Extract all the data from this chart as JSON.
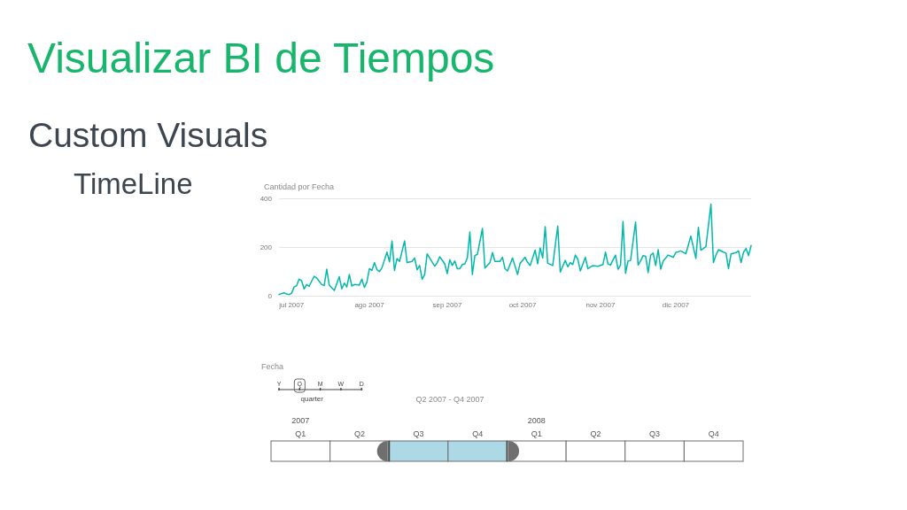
{
  "chart_data": [
    {
      "type": "other",
      "title": "Visualizar BI de Tiempos",
      "subtitle": "Custom Visuals",
      "annotations": [
        "TimeLine"
      ]
    },
    {
      "type": "line",
      "title": "Cantidad por Fecha",
      "color": "#01b8aa",
      "marker": "none",
      "grid": "y",
      "x": [
        "2007-06-26",
        "2007-06-28",
        "2007-06-29",
        "2007-06-30",
        "2007-07-01",
        "2007-07-02",
        "2007-07-03",
        "2007-07-04",
        "2007-07-05",
        "2007-07-06",
        "2007-07-07",
        "2007-07-08",
        "2007-07-10",
        "2007-07-11",
        "2007-07-13",
        "2007-07-14",
        "2007-07-15",
        "2007-07-16",
        "2007-07-18",
        "2007-07-20",
        "2007-07-21",
        "2007-07-22",
        "2007-07-23",
        "2007-07-24",
        "2007-07-25",
        "2007-07-26",
        "2007-07-28",
        "2007-07-29",
        "2007-07-30",
        "2007-07-31",
        "2007-08-01",
        "2007-08-02",
        "2007-08-03",
        "2007-08-04",
        "2007-08-05",
        "2007-08-06",
        "2007-08-08",
        "2007-08-09",
        "2007-08-10",
        "2007-08-11",
        "2007-08-12",
        "2007-08-13",
        "2007-08-15",
        "2007-08-16",
        "2007-08-18",
        "2007-08-19",
        "2007-08-20",
        "2007-08-21",
        "2007-08-22",
        "2007-08-23",
        "2007-08-24",
        "2007-08-25",
        "2007-08-27",
        "2007-08-28",
        "2007-08-29",
        "2007-08-31",
        "2007-09-01",
        "2007-09-02",
        "2007-09-03",
        "2007-09-04",
        "2007-09-05",
        "2007-09-06",
        "2007-09-07",
        "2007-09-08",
        "2007-09-09",
        "2007-09-10",
        "2007-09-11",
        "2007-09-12",
        "2007-09-13",
        "2007-09-15",
        "2007-09-16",
        "2007-09-18",
        "2007-09-19",
        "2007-09-20",
        "2007-09-22",
        "2007-09-23",
        "2007-09-24",
        "2007-09-25",
        "2007-09-27",
        "2007-09-29",
        "2007-09-30",
        "2007-10-02",
        "2007-10-03",
        "2007-10-04",
        "2007-10-06",
        "2007-10-07",
        "2007-10-08",
        "2007-10-09",
        "2007-10-10",
        "2007-10-11",
        "2007-10-13",
        "2007-10-15",
        "2007-10-16",
        "2007-10-18",
        "2007-10-19",
        "2007-10-20",
        "2007-10-21",
        "2007-10-22",
        "2007-10-23",
        "2007-10-24",
        "2007-10-26",
        "2007-10-27",
        "2007-10-29",
        "2007-10-31",
        "2007-11-02",
        "2007-11-03",
        "2007-11-04",
        "2007-11-05",
        "2007-11-07",
        "2007-11-08",
        "2007-11-09",
        "2007-11-10",
        "2007-11-11",
        "2007-11-12",
        "2007-11-13",
        "2007-11-15",
        "2007-11-16",
        "2007-11-17",
        "2007-11-18",
        "2007-11-19",
        "2007-11-20",
        "2007-11-21",
        "2007-11-22",
        "2007-11-23",
        "2007-11-24",
        "2007-11-25",
        "2007-11-26",
        "2007-11-28",
        "2007-11-30",
        "2007-12-01",
        "2007-12-03",
        "2007-12-05",
        "2007-12-07",
        "2007-12-09",
        "2007-12-10",
        "2007-12-11",
        "2007-12-13",
        "2007-12-15",
        "2007-12-16",
        "2007-12-17",
        "2007-12-18",
        "2007-12-20",
        "2007-12-21",
        "2007-12-22",
        "2007-12-23",
        "2007-12-25",
        "2007-12-26",
        "2007-12-27",
        "2007-12-28",
        "2007-12-29",
        "2007-12-30",
        "2007-12-31"
      ],
      "values": [
        5,
        12,
        7,
        5,
        10,
        36,
        41,
        68,
        61,
        28,
        46,
        39,
        80,
        73,
        46,
        42,
        109,
        44,
        22,
        78,
        28,
        52,
        36,
        87,
        40,
        46,
        44,
        68,
        34,
        56,
        111,
        104,
        136,
        107,
        99,
        115,
        179,
        139,
        225,
        104,
        153,
        141,
        225,
        136,
        141,
        155,
        107,
        124,
        68,
        87,
        172,
        155,
        121,
        136,
        160,
        131,
        91,
        148,
        124,
        143,
        111,
        111,
        128,
        131,
        155,
        262,
        87,
        165,
        170,
        276,
        114,
        136,
        177,
        141,
        141,
        158,
        111,
        102,
        155,
        87,
        133,
        158,
        137,
        124,
        187,
        131,
        196,
        155,
        284,
        133,
        124,
        286,
        97,
        145,
        119,
        136,
        128,
        167,
        150,
        102,
        158,
        111,
        124,
        121,
        128,
        179,
        131,
        126,
        167,
        109,
        126,
        305,
        92,
        143,
        145,
        303,
        126,
        143,
        165,
        162,
        95,
        167,
        175,
        124,
        189,
        109,
        143,
        167,
        158,
        177,
        184,
        172,
        245,
        153,
        281,
        187,
        201,
        376,
        136,
        167,
        189,
        179,
        175,
        111,
        172,
        177,
        184,
        136,
        179,
        194,
        165,
        206
      ],
      "xlim": [
        "2007-06-26",
        "2007-12-31"
      ],
      "xticks": [
        {
          "value": "2007-07-01",
          "label": "jul 2007"
        },
        {
          "value": "2007-08-01",
          "label": "ago 2007"
        },
        {
          "value": "2007-09-01",
          "label": "sep 2007"
        },
        {
          "value": "2007-10-01",
          "label": "oct 2007"
        },
        {
          "value": "2007-11-01",
          "label": "nov 2007"
        },
        {
          "value": "2007-12-01",
          "label": "dic 2007"
        }
      ],
      "ylim": [
        0,
        400
      ],
      "yticks": [
        0,
        200,
        400
      ]
    },
    {
      "type": "other",
      "title": "Fecha",
      "categories": [
        "Q1",
        "Q2",
        "Q3",
        "Q4",
        "Q1",
        "Q2",
        "Q3",
        "Q4"
      ],
      "colors": [
        "#ffffff",
        "#ffffff",
        "#add8e6",
        "#add8e6",
        "#ffffff",
        "#ffffff",
        "#ffffff",
        "#ffffff"
      ],
      "annotations": [
        "Y",
        "Q",
        "M",
        "W",
        "D",
        "quarter",
        "Q2 2007 - Q4 2007",
        "2007",
        "2008"
      ]
    }
  ]
}
